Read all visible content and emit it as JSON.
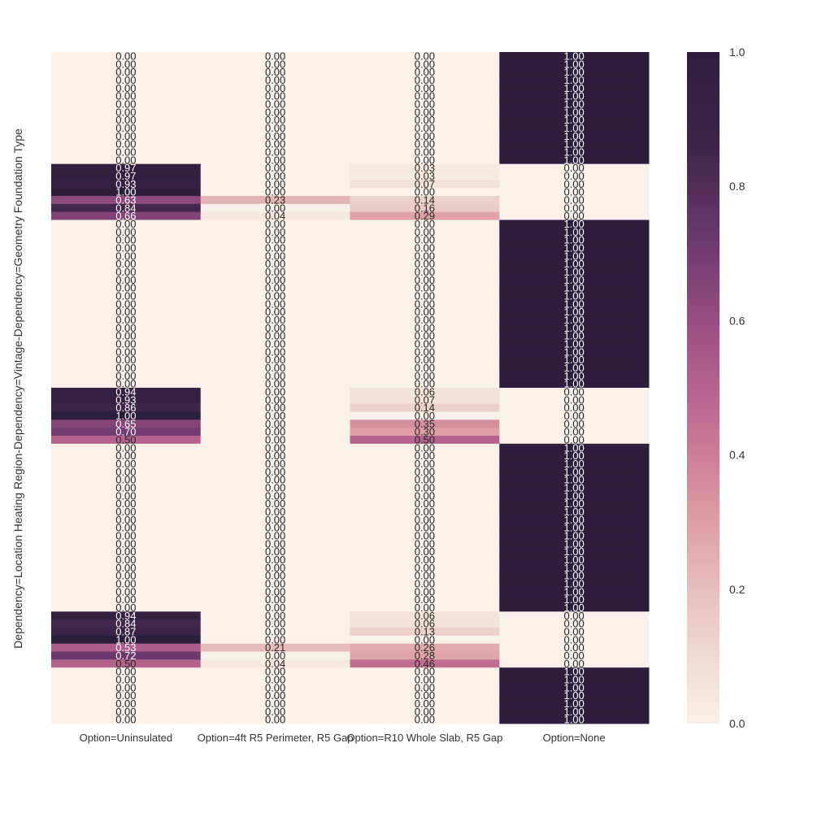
{
  "chart_data": {
    "type": "heatmap",
    "title": "",
    "xlabel": "",
    "ylabel": "Dependency=Location Heating Region-Dependency=Vintage-Dependency=Geometry Foundation Type",
    "columns": [
      "Option=Uninsulated",
      "Option=4ft R5 Perimeter, R5 Gap",
      "Option=R10 Whole Slab, R5 Gap",
      "Option=None"
    ],
    "row_labels_note": "",
    "rows": [
      [
        0.0,
        0.0,
        0.0,
        1.0
      ],
      [
        0.0,
        0.0,
        0.0,
        1.0
      ],
      [
        0.0,
        0.0,
        0.0,
        1.0
      ],
      [
        0.0,
        0.0,
        0.0,
        1.0
      ],
      [
        0.0,
        0.0,
        0.0,
        1.0
      ],
      [
        0.0,
        0.0,
        0.0,
        1.0
      ],
      [
        0.0,
        0.0,
        0.0,
        1.0
      ],
      [
        0.0,
        0.0,
        0.0,
        1.0
      ],
      [
        0.0,
        0.0,
        0.0,
        1.0
      ],
      [
        0.0,
        0.0,
        0.0,
        1.0
      ],
      [
        0.0,
        0.0,
        0.0,
        1.0
      ],
      [
        0.0,
        0.0,
        0.0,
        1.0
      ],
      [
        0.0,
        0.0,
        0.0,
        1.0
      ],
      [
        0.0,
        0.0,
        0.0,
        1.0
      ],
      [
        0.97,
        0.0,
        0.03,
        0.0
      ],
      [
        0.97,
        0.0,
        0.03,
        0.0
      ],
      [
        0.93,
        0.0,
        0.07,
        0.0
      ],
      [
        1.0,
        0.0,
        0.0,
        0.0
      ],
      [
        0.63,
        0.23,
        0.14,
        0.0
      ],
      [
        0.84,
        0.0,
        0.16,
        0.0
      ],
      [
        0.66,
        0.04,
        0.29,
        0.0
      ],
      [
        0.0,
        0.0,
        0.0,
        1.0
      ],
      [
        0.0,
        0.0,
        0.0,
        1.0
      ],
      [
        0.0,
        0.0,
        0.0,
        1.0
      ],
      [
        0.0,
        0.0,
        0.0,
        1.0
      ],
      [
        0.0,
        0.0,
        0.0,
        1.0
      ],
      [
        0.0,
        0.0,
        0.0,
        1.0
      ],
      [
        0.0,
        0.0,
        0.0,
        1.0
      ],
      [
        0.0,
        0.0,
        0.0,
        1.0
      ],
      [
        0.0,
        0.0,
        0.0,
        1.0
      ],
      [
        0.0,
        0.0,
        0.0,
        1.0
      ],
      [
        0.0,
        0.0,
        0.0,
        1.0
      ],
      [
        0.0,
        0.0,
        0.0,
        1.0
      ],
      [
        0.0,
        0.0,
        0.0,
        1.0
      ],
      [
        0.0,
        0.0,
        0.0,
        1.0
      ],
      [
        0.0,
        0.0,
        0.0,
        1.0
      ],
      [
        0.0,
        0.0,
        0.0,
        1.0
      ],
      [
        0.0,
        0.0,
        0.0,
        1.0
      ],
      [
        0.0,
        0.0,
        0.0,
        1.0
      ],
      [
        0.0,
        0.0,
        0.0,
        1.0
      ],
      [
        0.0,
        0.0,
        0.0,
        1.0
      ],
      [
        0.0,
        0.0,
        0.0,
        1.0
      ],
      [
        0.94,
        0.0,
        0.06,
        0.0
      ],
      [
        0.93,
        0.0,
        0.07,
        0.0
      ],
      [
        0.86,
        0.0,
        0.14,
        0.0
      ],
      [
        1.0,
        0.0,
        0.0,
        0.0
      ],
      [
        0.65,
        0.0,
        0.35,
        0.0
      ],
      [
        0.7,
        0.0,
        0.3,
        0.0
      ],
      [
        0.5,
        0.0,
        0.5,
        0.0
      ],
      [
        0.0,
        0.0,
        0.0,
        1.0
      ],
      [
        0.0,
        0.0,
        0.0,
        1.0
      ],
      [
        0.0,
        0.0,
        0.0,
        1.0
      ],
      [
        0.0,
        0.0,
        0.0,
        1.0
      ],
      [
        0.0,
        0.0,
        0.0,
        1.0
      ],
      [
        0.0,
        0.0,
        0.0,
        1.0
      ],
      [
        0.0,
        0.0,
        0.0,
        1.0
      ],
      [
        0.0,
        0.0,
        0.0,
        1.0
      ],
      [
        0.0,
        0.0,
        0.0,
        1.0
      ],
      [
        0.0,
        0.0,
        0.0,
        1.0
      ],
      [
        0.0,
        0.0,
        0.0,
        1.0
      ],
      [
        0.0,
        0.0,
        0.0,
        1.0
      ],
      [
        0.0,
        0.0,
        0.0,
        1.0
      ],
      [
        0.0,
        0.0,
        0.0,
        1.0
      ],
      [
        0.0,
        0.0,
        0.0,
        1.0
      ],
      [
        0.0,
        0.0,
        0.0,
        1.0
      ],
      [
        0.0,
        0.0,
        0.0,
        1.0
      ],
      [
        0.0,
        0.0,
        0.0,
        1.0
      ],
      [
        0.0,
        0.0,
        0.0,
        1.0
      ],
      [
        0.0,
        0.0,
        0.0,
        1.0
      ],
      [
        0.0,
        0.0,
        0.0,
        1.0
      ],
      [
        0.94,
        0.0,
        0.06,
        0.0
      ],
      [
        0.84,
        0.0,
        0.06,
        0.0
      ],
      [
        0.87,
        0.0,
        0.13,
        0.0
      ],
      [
        1.0,
        0.0,
        0.0,
        0.0
      ],
      [
        0.53,
        0.21,
        0.26,
        0.0
      ],
      [
        0.72,
        0.0,
        0.28,
        0.0
      ],
      [
        0.5,
        0.04,
        0.46,
        0.0
      ],
      [
        0.0,
        0.0,
        0.0,
        1.0
      ],
      [
        0.0,
        0.0,
        0.0,
        1.0
      ],
      [
        0.0,
        0.0,
        0.0,
        1.0
      ],
      [
        0.0,
        0.0,
        0.0,
        1.0
      ],
      [
        0.0,
        0.0,
        0.0,
        1.0
      ],
      [
        0.0,
        0.0,
        0.0,
        1.0
      ],
      [
        0.0,
        0.0,
        0.0,
        1.0
      ]
    ],
    "value_format": "0.00",
    "colorbar": {
      "min": 0.0,
      "max": 1.0,
      "ticks": [
        "0.0",
        "0.2",
        "0.4",
        "0.6",
        "0.8",
        "1.0"
      ],
      "colormap": [
        "#f8f0ea",
        "#eccfc9",
        "#dfa3a8",
        "#c97495",
        "#a15387",
        "#6f3a6e",
        "#3d2448",
        "#2c1f3e"
      ]
    },
    "grid": false,
    "legend": "colorbar-right"
  }
}
